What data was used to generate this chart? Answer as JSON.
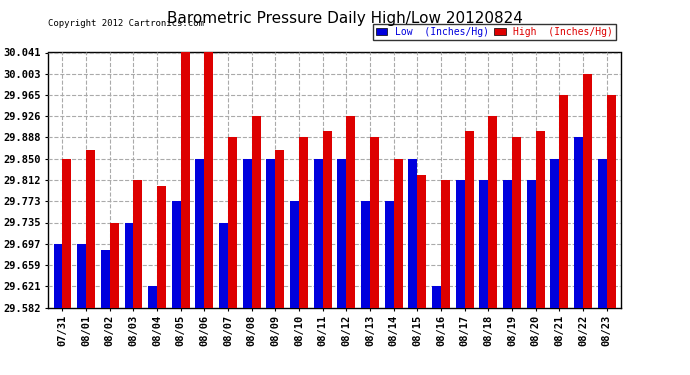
{
  "title": "Barometric Pressure Daily High/Low 20120824",
  "copyright": "Copyright 2012 Cartronics.com",
  "dates": [
    "07/31",
    "08/01",
    "08/02",
    "08/03",
    "08/04",
    "08/05",
    "08/06",
    "08/07",
    "08/08",
    "08/09",
    "08/10",
    "08/11",
    "08/12",
    "08/13",
    "08/14",
    "08/15",
    "08/16",
    "08/17",
    "08/18",
    "08/19",
    "08/20",
    "08/21",
    "08/22",
    "08/23"
  ],
  "low": [
    29.697,
    29.697,
    29.685,
    29.735,
    29.621,
    29.773,
    29.85,
    29.735,
    29.85,
    29.85,
    29.773,
    29.85,
    29.85,
    29.773,
    29.773,
    29.85,
    29.621,
    29.812,
    29.812,
    29.812,
    29.812,
    29.85,
    29.888,
    29.85
  ],
  "high": [
    29.85,
    29.865,
    29.735,
    29.812,
    29.8,
    30.041,
    30.041,
    29.888,
    29.926,
    29.865,
    29.888,
    29.9,
    29.926,
    29.888,
    29.85,
    29.82,
    29.812,
    29.9,
    29.926,
    29.888,
    29.9,
    29.965,
    30.003,
    29.965
  ],
  "ylim_min": 29.582,
  "ylim_max": 30.041,
  "yticks": [
    29.582,
    29.621,
    29.659,
    29.697,
    29.735,
    29.773,
    29.812,
    29.85,
    29.888,
    29.926,
    29.965,
    30.003,
    30.041
  ],
  "low_color": "#0000dd",
  "high_color": "#dd0000",
  "bg_color": "#ffffff",
  "grid_color": "#aaaaaa",
  "bar_width": 0.38,
  "legend_low_label": "Low  (Inches/Hg)",
  "legend_high_label": "High  (Inches/Hg)"
}
